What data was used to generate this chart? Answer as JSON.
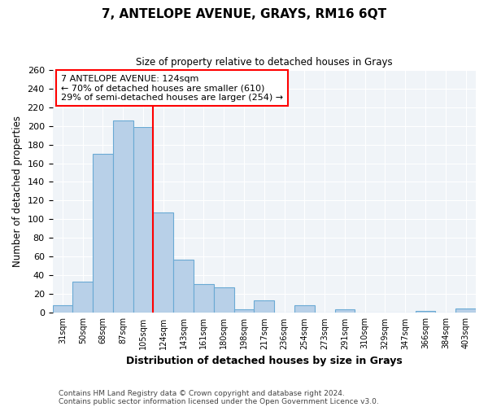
{
  "title": "7, ANTELOPE AVENUE, GRAYS, RM16 6QT",
  "subtitle": "Size of property relative to detached houses in Grays",
  "xlabel": "Distribution of detached houses by size in Grays",
  "ylabel": "Number of detached properties",
  "footer_line1": "Contains HM Land Registry data © Crown copyright and database right 2024.",
  "footer_line2": "Contains public sector information licensed under the Open Government Licence v3.0.",
  "bin_labels": [
    "31sqm",
    "50sqm",
    "68sqm",
    "87sqm",
    "105sqm",
    "124sqm",
    "143sqm",
    "161sqm",
    "180sqm",
    "198sqm",
    "217sqm",
    "236sqm",
    "254sqm",
    "273sqm",
    "291sqm",
    "310sqm",
    "329sqm",
    "347sqm",
    "366sqm",
    "384sqm",
    "403sqm"
  ],
  "bar_heights": [
    8,
    33,
    170,
    206,
    199,
    107,
    57,
    31,
    27,
    4,
    13,
    0,
    8,
    0,
    4,
    0,
    0,
    0,
    2,
    0,
    5
  ],
  "bar_color": "#b8d0e8",
  "bar_edge_color": "#6aaad4",
  "vline_index": 5,
  "vline_color": "red",
  "annotation_title": "7 ANTELOPE AVENUE: 124sqm",
  "annotation_line1": "← 70% of detached houses are smaller (610)",
  "annotation_line2": "29% of semi-detached houses are larger (254) →",
  "annotation_box_edge_color": "red",
  "annotation_box_face_color": "white",
  "ylim": [
    0,
    260
  ],
  "yticks": [
    0,
    20,
    40,
    60,
    80,
    100,
    120,
    140,
    160,
    180,
    200,
    220,
    240,
    260
  ]
}
